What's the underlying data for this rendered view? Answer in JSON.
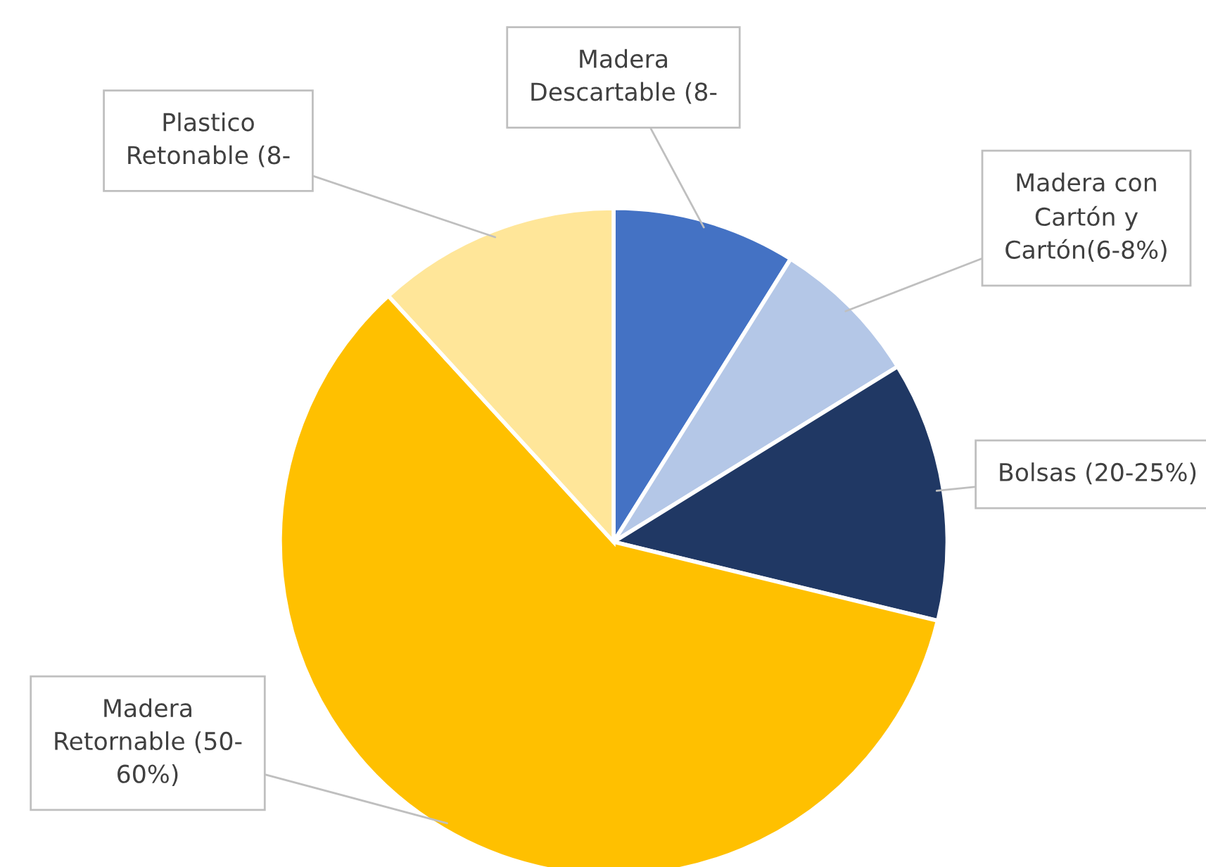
{
  "chart_data": {
    "type": "pie",
    "categories": [
      "Madera\nDescartable (8-",
      "Madera con\nCartón y\nCartón(6-8%)",
      "Bolsas (20-25%)",
      "Madera\nRetornable (50-\n60%)",
      "Plastico\nRetonable (8-"
    ],
    "values": [
      8.9,
      7.3,
      12.6,
      59.4,
      11.8
    ],
    "colors": [
      "#4472c4",
      "#b4c7e7",
      "#203864",
      "#ffc000",
      "#ffe699"
    ]
  }
}
